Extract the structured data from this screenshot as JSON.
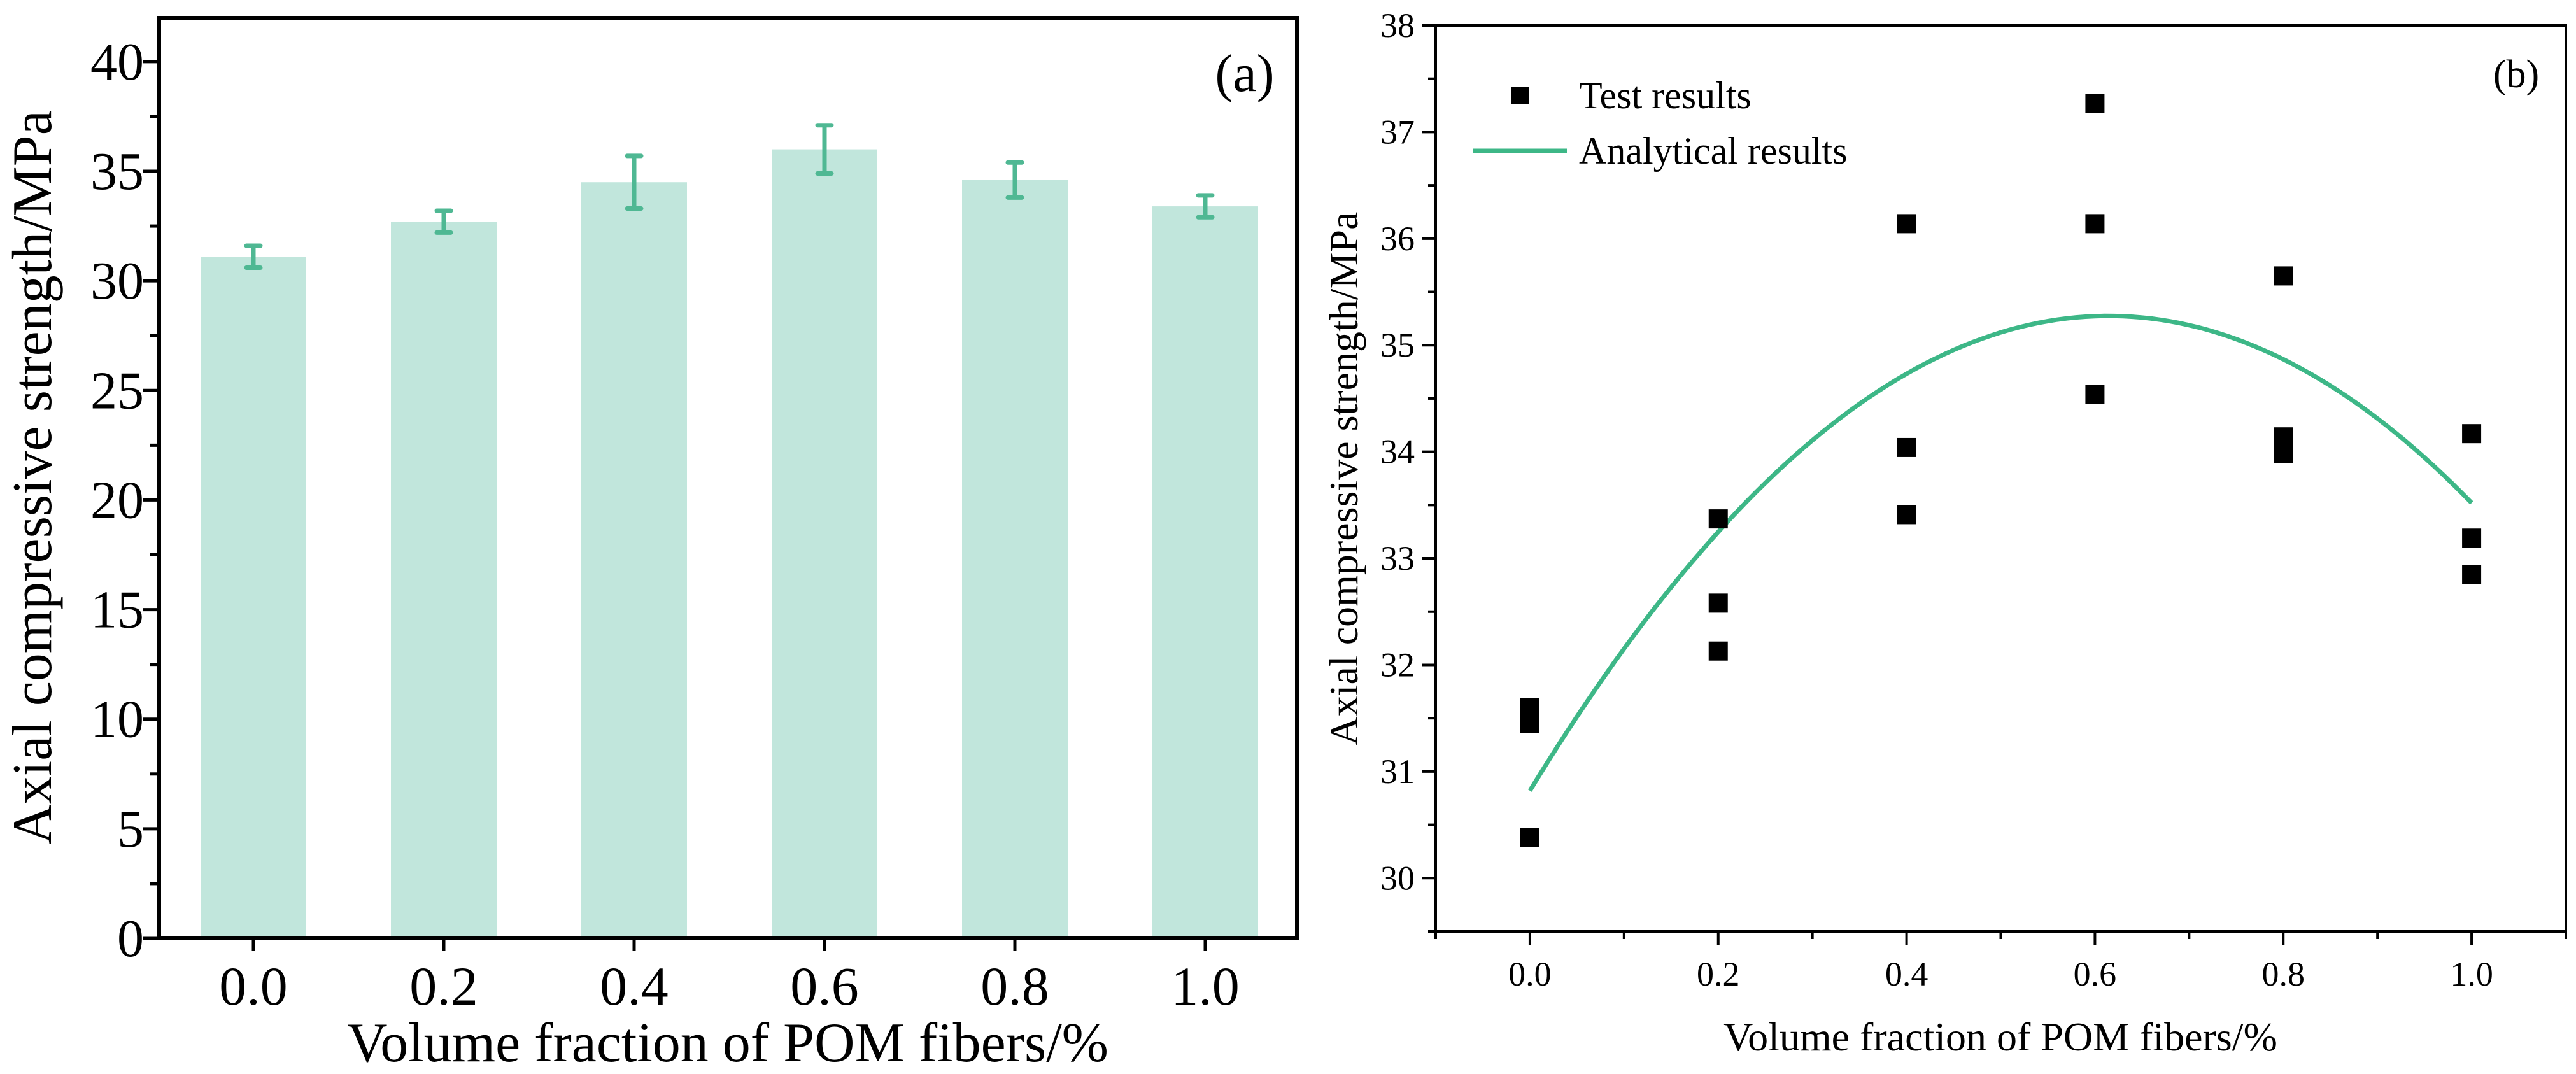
{
  "chart_data": [
    {
      "panel": "(a)",
      "type": "bar",
      "xlabel": "Volume fraction of POM fibers/%",
      "ylabel": "Axial compressive strength/MPa",
      "categories": [
        "0.0",
        "0.2",
        "0.4",
        "0.6",
        "0.8",
        "1.0"
      ],
      "values": [
        31.1,
        32.7,
        34.5,
        36.0,
        34.6,
        33.4
      ],
      "errors": [
        0.5,
        0.5,
        1.2,
        1.1,
        0.8,
        0.5
      ],
      "ylim": [
        0,
        42
      ],
      "yticks": [
        0,
        5,
        10,
        15,
        20,
        25,
        30,
        35,
        40
      ],
      "bar_color": "#c1e6dc",
      "error_color": "#4fb893"
    },
    {
      "panel": "(b)",
      "type": "scatter",
      "xlabel": "Volume fraction of POM fibers/%",
      "ylabel": "Axial compressive strength/MPa",
      "xlim": [
        -0.1,
        1.1
      ],
      "ylim": [
        29.5,
        38.0
      ],
      "xticks": [
        "0.0",
        "0.2",
        "0.4",
        "0.6",
        "0.8",
        "1.0"
      ],
      "xtick_values": [
        0,
        0.2,
        0.4,
        0.6,
        0.8,
        1.0
      ],
      "yticks": [
        30,
        31,
        32,
        33,
        34,
        35,
        36,
        37,
        38
      ],
      "legend": {
        "position": "top-left",
        "entries": [
          {
            "label": "Test results",
            "kind": "marker"
          },
          {
            "label": "Analytical results",
            "kind": "line"
          }
        ]
      },
      "series": [
        {
          "name": "Test results",
          "color": "#000000",
          "points": [
            [
              0.0,
              31.6
            ],
            [
              0.0,
              31.45
            ],
            [
              0.0,
              30.38
            ],
            [
              0.2,
              33.37
            ],
            [
              0.2,
              32.58
            ],
            [
              0.2,
              32.13
            ],
            [
              0.4,
              36.14
            ],
            [
              0.4,
              34.04
            ],
            [
              0.4,
              33.41
            ],
            [
              0.6,
              37.27
            ],
            [
              0.6,
              36.14
            ],
            [
              0.6,
              34.54
            ],
            [
              0.8,
              35.65
            ],
            [
              0.8,
              34.14
            ],
            [
              0.8,
              34.04
            ],
            [
              0.8,
              33.98
            ],
            [
              1.0,
              34.17
            ],
            [
              1.0,
              33.19
            ],
            [
              1.0,
              32.85
            ]
          ]
        },
        {
          "name": "Analytical results",
          "color": "#3db787",
          "equation": "y = 30.82 + 14.5x - 11.8x^2",
          "x_range": [
            0,
            1.0
          ]
        }
      ]
    }
  ]
}
